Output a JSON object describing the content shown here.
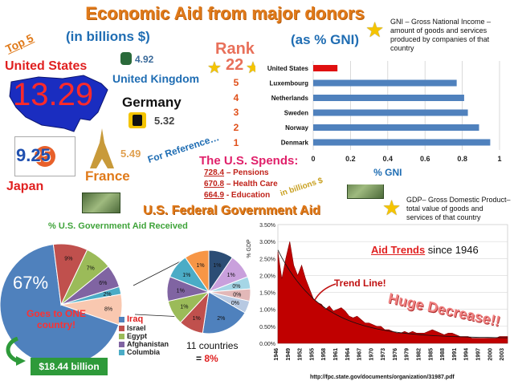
{
  "header": {
    "title": "Economic Aid from major donors",
    "subtitle_billions": "(in billions $)",
    "subtitle_gni": "(as % GNI)",
    "top5_label": "Top 5"
  },
  "donors": {
    "united_states": {
      "name": "United States",
      "value": "13.29"
    },
    "united_kingdom": {
      "name": "United Kingdom",
      "value": "4.92"
    },
    "germany": {
      "name": "Germany",
      "value": "5.32"
    },
    "japan": {
      "name": "Japan",
      "value": "9.25"
    },
    "france": {
      "name": "France",
      "value": "5.49"
    }
  },
  "rank": {
    "label": "Rank",
    "us_rank": "22",
    "numbers": [
      "5",
      "4",
      "3",
      "2",
      "1"
    ]
  },
  "gni_note": "GNI – Gross National Income – amount of goods and services produced by companies of that country",
  "gdp_note": "GDP– Gross  Domestic Product– total value of goods and services  of that country",
  "reference": {
    "label": "For Reference…",
    "title": "The U.S. Spends:",
    "items": [
      {
        "num": "728.4",
        "text": "– Pensions"
      },
      {
        "num": "670.8",
        "text": "– Health Care"
      },
      {
        "num": "664.9",
        "text": "- Education"
      }
    ],
    "unit_note": "in billions $"
  },
  "section_federal": "U.S. Federal Government Aid",
  "pie_section": {
    "title": "% U.S. Government Aid Received",
    "big_pct": "67%",
    "one_country_line1": "Goes to ONE",
    "one_country_line2": "country!",
    "amount": "$18.44 billion",
    "eleven_line1": "11 countries",
    "eleven_eq": "= ",
    "eleven_pct": "8%"
  },
  "trend_section": {
    "title": "Aid Trends",
    "title_rest": " since 1946",
    "trend_line_label": "Trend Line!",
    "huge_decrease": "Huge Decrease!!"
  },
  "source_url": "http://fpc.state.gov/documents/organization/31987.pdf",
  "chart_data": [
    {
      "type": "bar",
      "orientation": "horizontal",
      "categories": [
        "United States",
        "Luxembourg",
        "Netherlands",
        "Sweden",
        "Norway",
        "Denmark"
      ],
      "values": [
        0.13,
        0.77,
        0.81,
        0.83,
        0.89,
        0.95
      ],
      "colors": [
        "#e01010",
        "#4f81bd",
        "#4f81bd",
        "#4f81bd",
        "#4f81bd",
        "#4f81bd"
      ],
      "xlabel": "% GNI",
      "xlim": [
        0,
        1
      ],
      "ticks": [
        "0",
        "0.2",
        "0.4",
        "0.6",
        "0.8",
        "1"
      ],
      "grid": true
    },
    {
      "type": "pie",
      "slices": [
        {
          "label": "Iraq",
          "value": 67,
          "color": "#4f81bd"
        },
        {
          "label": "Israel",
          "value": 9,
          "color": "#c0504d",
          "text": "9%"
        },
        {
          "label": "Egypt",
          "value": 7,
          "color": "#9bbb59",
          "text": "7%"
        },
        {
          "label": "Afghanistan",
          "value": 6,
          "color": "#8064a2",
          "text": "6%"
        },
        {
          "label": "Columbia",
          "value": 2,
          "color": "#4bacc6",
          "text": "2%"
        },
        {
          "label": "",
          "value": 8,
          "color": "#f9c8b0",
          "text": "8%"
        }
      ],
      "legend": [
        "Iraq",
        "Israel",
        "Egypt",
        "Afghanistan",
        "Columbia"
      ],
      "legend_colors": [
        "#4f81bd",
        "#c0504d",
        "#9bbb59",
        "#8064a2",
        "#4bacc6"
      ]
    },
    {
      "type": "pie",
      "slices": [
        {
          "value": 2,
          "color": "#4f81bd",
          "text": "2%"
        },
        {
          "value": 1,
          "color": "#c0504d",
          "text": "1%"
        },
        {
          "value": 1,
          "color": "#9bbb59",
          "text": "1%"
        },
        {
          "value": 1,
          "color": "#8064a2",
          "text": "1%"
        },
        {
          "value": 1,
          "color": "#4bacc6",
          "text": "1%"
        },
        {
          "value": 1,
          "color": "#f79646",
          "text": "1%"
        },
        {
          "value": 1,
          "color": "#2c4d75",
          "text": "1%"
        },
        {
          "value": 1,
          "color": "#c9a0dc",
          "text": "1%"
        },
        {
          "value": 0.5,
          "color": "#a5d6e6",
          "text": "0%"
        },
        {
          "value": 0.5,
          "color": "#e2b8b8",
          "text": "0%"
        },
        {
          "value": 0.5,
          "color": "#b7c9e2",
          "text": "0%"
        }
      ]
    },
    {
      "type": "area",
      "ylabel": "% GDP",
      "ylim": [
        0,
        3.5
      ],
      "yticks": [
        "0.00%",
        "0.50%",
        "1.00%",
        "1.50%",
        "2.00%",
        "2.50%",
        "3.00%",
        "3.50%"
      ],
      "xticks": [
        "1946",
        "1949",
        "1952",
        "1955",
        "1958",
        "1961",
        "1964",
        "1967",
        "1970",
        "1973",
        "1976",
        "1979",
        "1982",
        "1985",
        "1988",
        "1991",
        "1994",
        "1997",
        "2000",
        "2003"
      ],
      "x": [
        1946,
        1947,
        1948,
        1949,
        1950,
        1951,
        1952,
        1953,
        1954,
        1955,
        1956,
        1957,
        1958,
        1959,
        1960,
        1961,
        1962,
        1963,
        1964,
        1965,
        1966,
        1967,
        1968,
        1969,
        1970,
        1971,
        1972,
        1973,
        1974,
        1975,
        1976,
        1977,
        1978,
        1979,
        1980,
        1981,
        1982,
        1983,
        1984,
        1985,
        1986,
        1987,
        1988,
        1989,
        1990,
        1991,
        1992,
        1993,
        1994,
        1995,
        1996,
        1997,
        1998,
        1999,
        2000,
        2001,
        2002,
        2003,
        2004
      ],
      "y": [
        2.7,
        1.9,
        2.5,
        3.0,
        2.3,
        2.0,
        2.3,
        1.9,
        1.6,
        1.3,
        1.2,
        1.15,
        1.0,
        1.1,
        0.95,
        1.0,
        1.05,
        0.95,
        0.8,
        0.75,
        0.8,
        0.7,
        0.6,
        0.6,
        0.55,
        0.5,
        0.5,
        0.4,
        0.4,
        0.35,
        0.3,
        0.3,
        0.35,
        0.3,
        0.35,
        0.3,
        0.3,
        0.3,
        0.35,
        0.4,
        0.35,
        0.3,
        0.25,
        0.3,
        0.3,
        0.25,
        0.2,
        0.2,
        0.2,
        0.15,
        0.15,
        0.15,
        0.15,
        0.15,
        0.15,
        0.15,
        0.2,
        0.2,
        0.2
      ],
      "trend_line": true,
      "fill_color": "#c00000"
    }
  ]
}
